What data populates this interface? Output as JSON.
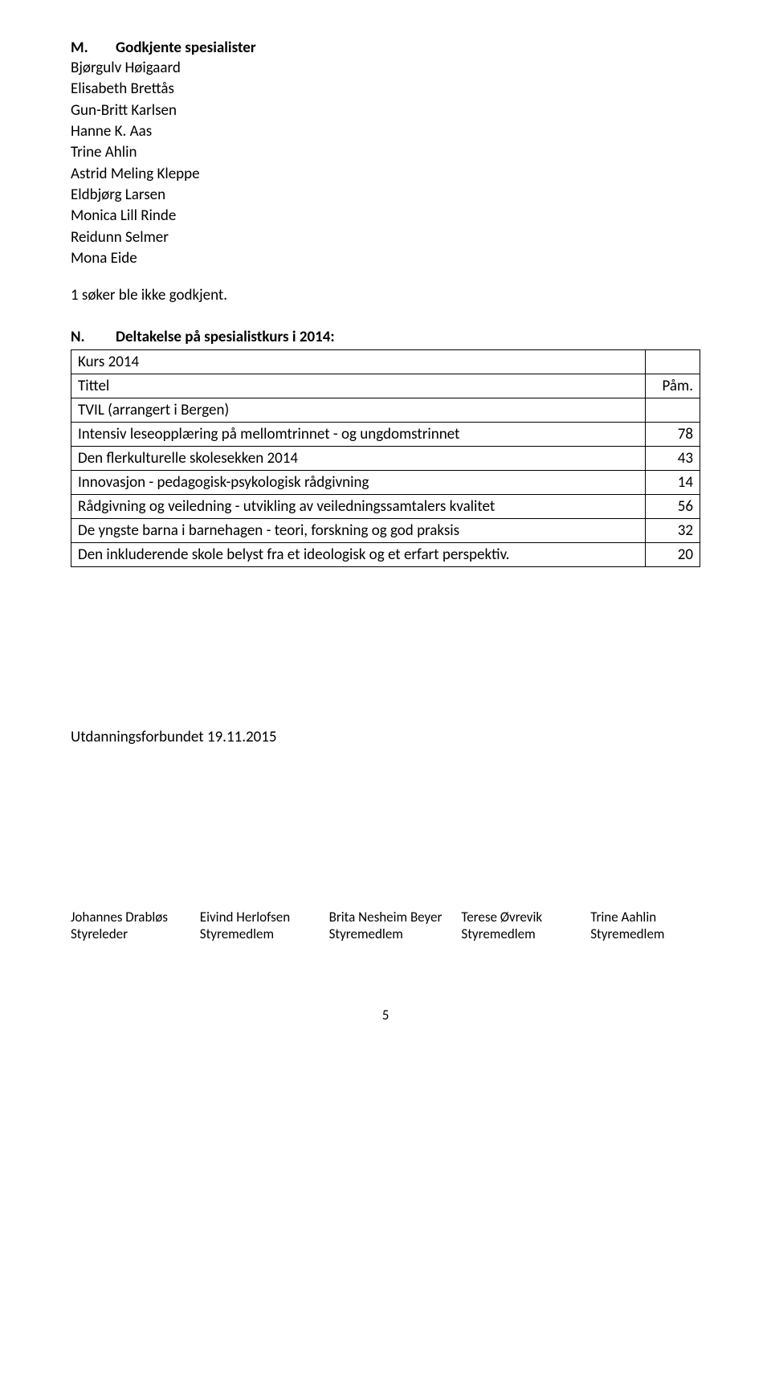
{
  "sectionM": {
    "letter": "M.",
    "title": "Godkjente spesialister",
    "names": [
      "Bjørgulv Høigaard",
      "Elisabeth Brettås",
      "Gun-Britt Karlsen",
      "Hanne K. Aas",
      "Trine Ahlin",
      "Astrid Meling Kleppe",
      "Eldbjørg Larsen",
      "Monica Lill Rinde",
      "Reidunn Selmer",
      "Mona Eide"
    ],
    "note": "1 søker ble ikke godkjent."
  },
  "sectionN": {
    "letter": "N.",
    "title": "Deltakelse på spesialistkurs i 2014:",
    "yearLabel": "Kurs 2014",
    "titleHeader": "Tittel",
    "countHeader": "Påm.",
    "rows": [
      {
        "label": "TVIL (arrangert i Bergen)",
        "count": ""
      },
      {
        "label": "Intensiv leseopplæring på mellomtrinnet - og ungdomstrinnet",
        "count": "78"
      },
      {
        "label": "Den flerkulturelle skolesekken 2014",
        "count": "43"
      },
      {
        "label": "Innovasjon - pedagogisk-psykologisk rådgivning",
        "count": "14"
      },
      {
        "label": "Rådgivning og veiledning - utvikling av veiledningssamtalers kvalitet",
        "count": "56"
      },
      {
        "label": "De yngste barna i barnehagen - teori,  forskning og god praksis",
        "count": "32"
      },
      {
        "label": "Den inkluderende skole belyst fra et ideologisk og et erfart perspektiv.",
        "count": "20"
      }
    ]
  },
  "footerLine": "Utdanningsforbundet 19.11.2015",
  "signatures": [
    {
      "name": "Johannes Drabløs",
      "role": "Styreleder"
    },
    {
      "name": "Eivind Herlofsen",
      "role": "Styremedlem"
    },
    {
      "name": "Brita Nesheim Beyer",
      "role": "Styremedlem"
    },
    {
      "name": "Terese Øvrevik",
      "role": "Styremedlem"
    },
    {
      "name": "Trine Aahlin",
      "role": "Styremedlem"
    }
  ],
  "pageNumber": "5"
}
